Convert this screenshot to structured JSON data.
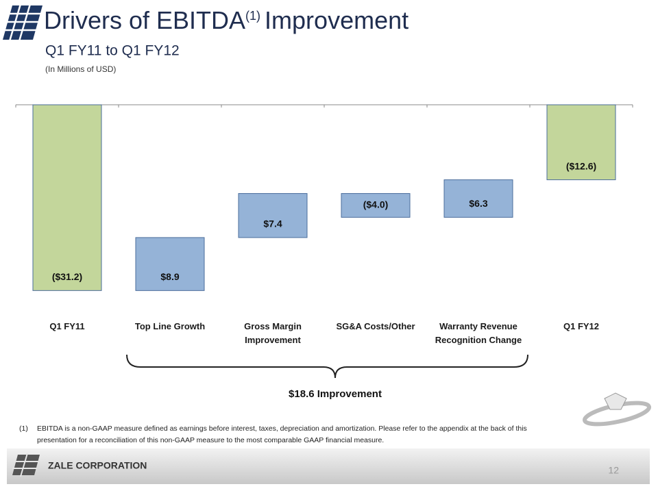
{
  "slide": {
    "title": "Drivers of EBITDA",
    "title_superscript": "(1)",
    "title_end": "Improvement",
    "subtitle": "Q1 FY11 to Q1 FY12",
    "units": "(In Millions of USD)",
    "brace_label": "$18.6 Improvement",
    "footnote_marker": "(1)",
    "footnote": "EBITDA is a non-GAAP measure defined as earnings before interest, taxes, depreciation and amortization. Please refer to the appendix at the back of this presentation for a reconciliation of this non-GAAP measure to the most comparable GAAP financial measure.",
    "company": "ZALE CORPORATION",
    "page_number": "12"
  },
  "chart_data": {
    "type": "waterfall",
    "categories": [
      "Q1 FY11",
      "Top Line Growth",
      "Gross Margin Improvement",
      "SG&A Costs/Other",
      "Warranty Revenue Recognition Change",
      "Q1 FY12"
    ],
    "values": [
      -31.2,
      8.9,
      7.4,
      -4.0,
      6.3,
      -12.6
    ],
    "value_labels": [
      "($31.2)",
      "$8.9",
      "$7.4",
      "($4.0)",
      "$6.3",
      "($12.6)"
    ],
    "colors": [
      "#c3d69b",
      "#95b3d7",
      "#95b3d7",
      "#95b3d7",
      "#95b3d7",
      "#c3d69b"
    ],
    "ylim": [
      -33,
      0
    ]
  }
}
